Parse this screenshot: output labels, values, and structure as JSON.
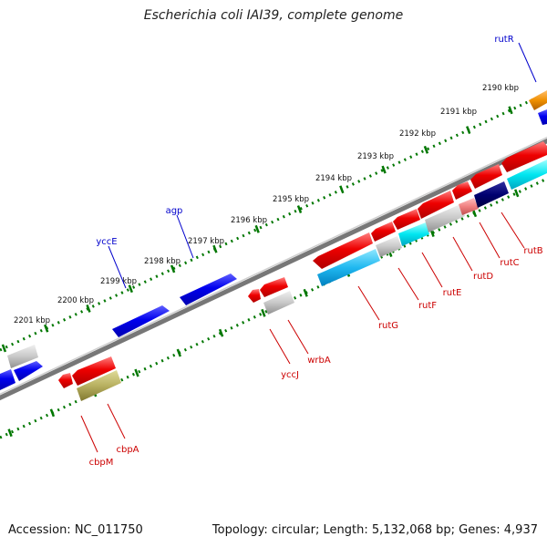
{
  "title": "Escherichia coli IAI39, complete genome",
  "footer": {
    "accession": "Accession: NC_011750",
    "summary": "Topology: circular; Length: 5,132,068 bp; Genes: 4,937"
  },
  "ticks": [
    "2190 kbp",
    "2191 kbp",
    "2192 kbp",
    "2193 kbp",
    "2194 kbp",
    "2195 kbp",
    "2196 kbp",
    "2197 kbp",
    "2198 kbp",
    "2199 kbp",
    "2200 kbp",
    "2201 kbp"
  ],
  "gene_labels": {
    "forward": [
      "rutR",
      "agp",
      "yccE"
    ],
    "reverse": [
      "rutB",
      "rutC",
      "rutD",
      "rutE",
      "rutF",
      "rutG",
      "wrbA",
      "yccJ",
      "cbpA",
      "cbpM"
    ]
  },
  "colors": {
    "forward_label": "#0000cc",
    "reverse_label": "#cc0000",
    "forward_cds": "#0000ee",
    "reverse_cds": "#ee0000",
    "tick_track": "#007700",
    "backbone": "#777777"
  }
}
